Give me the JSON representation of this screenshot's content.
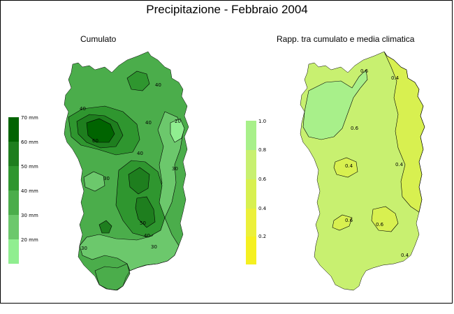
{
  "title": "Precipitazione - Febbraio 2004",
  "left_map": {
    "subtitle": "Cumulato",
    "legend": [
      {
        "label": "70 mm",
        "color": "#006400"
      },
      {
        "label": "60 mm",
        "color": "#1e7e1e"
      },
      {
        "label": "50 mm",
        "color": "#2f962f"
      },
      {
        "label": "40 mm",
        "color": "#4bad4b"
      },
      {
        "label": "30 mm",
        "color": "#6cc86c"
      },
      {
        "label": "20 mm",
        "color": "#90ee90"
      }
    ],
    "contour_labels": [
      "40",
      "40",
      "40",
      "20",
      "60",
      "40",
      "30",
      "30",
      "30",
      "50",
      "40",
      "30",
      "30"
    ]
  },
  "right_map": {
    "subtitle": "Rapp. tra cumulato e media climatica",
    "legend": [
      {
        "label": "1.0",
        "color": "#a8f08a"
      },
      {
        "label": "0.8",
        "color": "#c8f070"
      },
      {
        "label": "0.6",
        "color": "#d8f050"
      },
      {
        "label": "0.4",
        "color": "#ecf03a"
      },
      {
        "label": "0.2",
        "color": "#f5f020"
      },
      {
        "label": "",
        "color": "#fafa10"
      }
    ],
    "contour_labels": [
      "0.6",
      "0.4",
      "0.6",
      "0.4",
      "0.4",
      "0.6",
      "0.6",
      "0.4"
    ]
  }
}
